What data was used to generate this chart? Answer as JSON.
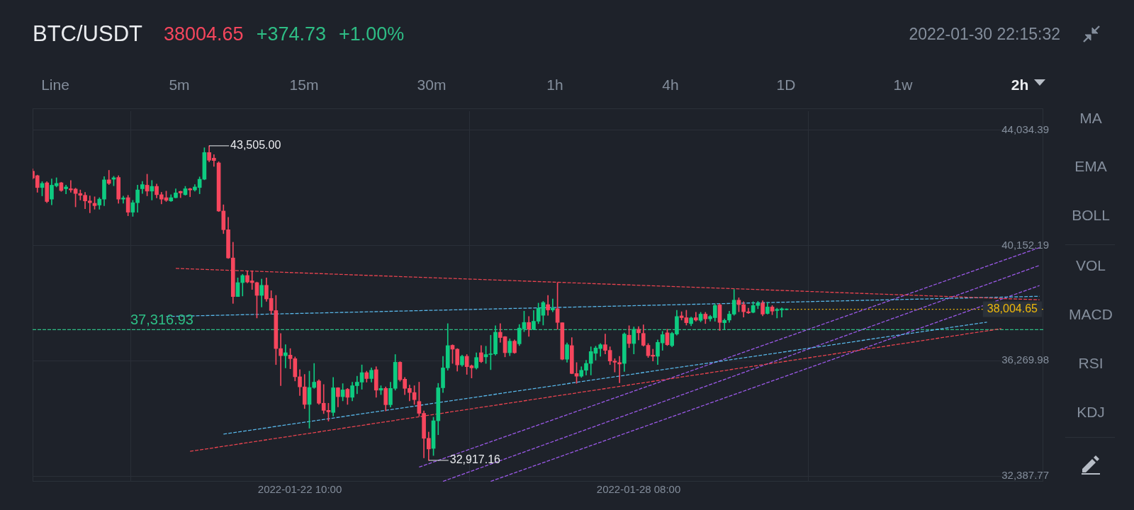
{
  "chart_data": {
    "type": "candlestick",
    "title": "BTC/USDT",
    "annotations": [
      "38004.65",
      "+374.73",
      "+1.00%",
      "2022-01-30 22:15:32",
      "Line",
      "5m",
      "15m",
      "30m",
      "1h",
      "4h",
      "1D",
      "1w",
      "2h",
      "MA",
      "EMA",
      "BOLL",
      "VOL",
      "MACD",
      "RSI",
      "KDJ",
      {
        "text": "43,505.00",
        "x": "2022-01-20T20:00",
        "y": 43505
      },
      {
        "text": "32,917.16",
        "x": "2022-01-24T16:00",
        "y": 32917.16
      }
    ],
    "x": [
      "2022-01-17T18:00",
      "2022-01-17T20:00",
      "2022-01-17T22:00",
      "2022-01-18T00:00",
      "2022-01-18T02:00",
      "2022-01-18T04:00",
      "2022-01-18T06:00",
      "2022-01-18T08:00",
      "2022-01-18T10:00",
      "2022-01-18T12:00",
      "2022-01-18T14:00",
      "2022-01-18T16:00",
      "2022-01-18T18:00",
      "2022-01-18T20:00",
      "2022-01-18T22:00",
      "2022-01-19T00:00",
      "2022-01-19T02:00",
      "2022-01-19T04:00",
      "2022-01-19T06:00",
      "2022-01-19T08:00",
      "2022-01-19T10:00",
      "2022-01-19T12:00",
      "2022-01-19T14:00",
      "2022-01-19T16:00",
      "2022-01-19T18:00",
      "2022-01-19T20:00",
      "2022-01-19T22:00",
      "2022-01-20T00:00",
      "2022-01-20T02:00",
      "2022-01-20T04:00",
      "2022-01-20T06:00",
      "2022-01-20T08:00",
      "2022-01-20T10:00",
      "2022-01-20T12:00",
      "2022-01-20T14:00",
      "2022-01-20T16:00",
      "2022-01-20T18:00",
      "2022-01-20T20:00",
      "2022-01-20T22:00",
      "2022-01-21T00:00",
      "2022-01-21T02:00",
      "2022-01-21T04:00",
      "2022-01-21T06:00",
      "2022-01-21T08:00",
      "2022-01-21T10:00",
      "2022-01-21T12:00",
      "2022-01-21T14:00",
      "2022-01-21T16:00",
      "2022-01-21T18:00",
      "2022-01-21T20:00",
      "2022-01-21T22:00",
      "2022-01-22T00:00",
      "2022-01-22T02:00",
      "2022-01-22T04:00",
      "2022-01-22T06:00",
      "2022-01-22T08:00",
      "2022-01-22T10:00",
      "2022-01-22T12:00",
      "2022-01-22T14:00",
      "2022-01-22T16:00",
      "2022-01-22T18:00",
      "2022-01-22T20:00",
      "2022-01-22T22:00",
      "2022-01-23T00:00",
      "2022-01-23T02:00",
      "2022-01-23T04:00",
      "2022-01-23T06:00",
      "2022-01-23T08:00",
      "2022-01-23T10:00",
      "2022-01-23T12:00",
      "2022-01-23T14:00",
      "2022-01-23T16:00",
      "2022-01-23T18:00",
      "2022-01-23T20:00",
      "2022-01-23T22:00",
      "2022-01-24T00:00",
      "2022-01-24T02:00",
      "2022-01-24T04:00",
      "2022-01-24T06:00",
      "2022-01-24T08:00",
      "2022-01-24T10:00",
      "2022-01-24T12:00",
      "2022-01-24T14:00",
      "2022-01-24T16:00",
      "2022-01-24T18:00",
      "2022-01-24T20:00",
      "2022-01-24T22:00",
      "2022-01-25T00:00",
      "2022-01-25T02:00",
      "2022-01-25T04:00",
      "2022-01-25T06:00",
      "2022-01-25T08:00",
      "2022-01-25T10:00",
      "2022-01-25T12:00",
      "2022-01-25T14:00",
      "2022-01-25T16:00",
      "2022-01-25T18:00",
      "2022-01-25T20:00",
      "2022-01-25T22:00",
      "2022-01-26T00:00",
      "2022-01-26T02:00",
      "2022-01-26T04:00",
      "2022-01-26T06:00",
      "2022-01-26T08:00",
      "2022-01-26T10:00",
      "2022-01-26T12:00",
      "2022-01-26T14:00",
      "2022-01-26T16:00",
      "2022-01-26T18:00",
      "2022-01-26T20:00",
      "2022-01-26T22:00",
      "2022-01-27T00:00",
      "2022-01-27T02:00",
      "2022-01-27T04:00",
      "2022-01-27T06:00",
      "2022-01-27T08:00",
      "2022-01-27T10:00",
      "2022-01-27T12:00",
      "2022-01-27T14:00",
      "2022-01-27T16:00",
      "2022-01-27T18:00",
      "2022-01-27T20:00",
      "2022-01-27T22:00",
      "2022-01-28T00:00",
      "2022-01-28T02:00",
      "2022-01-28T04:00",
      "2022-01-28T06:00",
      "2022-01-28T08:00",
      "2022-01-28T10:00",
      "2022-01-28T12:00",
      "2022-01-28T14:00",
      "2022-01-28T16:00",
      "2022-01-28T18:00",
      "2022-01-28T20:00",
      "2022-01-28T22:00",
      "2022-01-29T00:00",
      "2022-01-29T02:00",
      "2022-01-29T04:00",
      "2022-01-29T06:00",
      "2022-01-29T08:00",
      "2022-01-29T10:00",
      "2022-01-29T12:00",
      "2022-01-29T14:00",
      "2022-01-29T16:00",
      "2022-01-29T18:00",
      "2022-01-29T20:00",
      "2022-01-29T22:00",
      "2022-01-30T00:00",
      "2022-01-30T02:00",
      "2022-01-30T04:00",
      "2022-01-30T06:00",
      "2022-01-30T08:00",
      "2022-01-30T10:00",
      "2022-01-30T12:00",
      "2022-01-30T14:00",
      "2022-01-30T16:00",
      "2022-01-30T18:00",
      "2022-01-30T20:00",
      "2022-01-30T22:00"
    ],
    "ohlc": [
      [
        42650,
        42730,
        42380,
        42420
      ],
      [
        42500,
        42520,
        41940,
        42100
      ],
      [
        42100,
        42300,
        41820,
        42240
      ],
      [
        42260,
        42300,
        41590,
        41630
      ],
      [
        41710,
        42390,
        41520,
        42180
      ],
      [
        42160,
        42430,
        42120,
        42240
      ],
      [
        42260,
        42280,
        41970,
        42000
      ],
      [
        42060,
        42180,
        41890,
        42120
      ],
      [
        42060,
        42340,
        41940,
        42020
      ],
      [
        42050,
        42080,
        41450,
        41900
      ],
      [
        41900,
        42020,
        41680,
        41840
      ],
      [
        41840,
        41940,
        41390,
        41650
      ],
      [
        41650,
        41820,
        41250,
        41590
      ],
      [
        41570,
        41790,
        41370,
        41490
      ],
      [
        41510,
        41760,
        41370,
        41710
      ],
      [
        41710,
        42470,
        41490,
        42360
      ],
      [
        42360,
        42680,
        42200,
        42240
      ],
      [
        42380,
        42480,
        42160,
        42430
      ],
      [
        42440,
        42500,
        41570,
        41710
      ],
      [
        41710,
        41810,
        41570,
        41750
      ],
      [
        41760,
        41840,
        41150,
        41270
      ],
      [
        41270,
        41670,
        41130,
        41590
      ],
      [
        41590,
        42180,
        41270,
        42020
      ],
      [
        42060,
        42310,
        41900,
        42200
      ],
      [
        42180,
        42550,
        41820,
        41980
      ],
      [
        41980,
        42340,
        41680,
        42140
      ],
      [
        42140,
        42220,
        41750,
        41860
      ],
      [
        41860,
        41940,
        41550,
        41710
      ],
      [
        41760,
        41980,
        41630,
        41670
      ],
      [
        41650,
        41860,
        41630,
        41760
      ],
      [
        41760,
        42060,
        41750,
        41920
      ],
      [
        41970,
        41980,
        41760,
        41920
      ],
      [
        41860,
        42140,
        41840,
        42060
      ],
      [
        42060,
        42080,
        41790,
        42020
      ],
      [
        42020,
        42200,
        41980,
        42120
      ],
      [
        42100,
        42460,
        41890,
        42380
      ],
      [
        42380,
        43440,
        42360,
        43280
      ],
      [
        43280,
        43505,
        42970,
        43020
      ],
      [
        43090,
        43210,
        42810,
        43010
      ],
      [
        42930,
        42970,
        41290,
        41310
      ],
      [
        41310,
        41520,
        40550,
        40680
      ],
      [
        40680,
        41100,
        39710,
        39730
      ],
      [
        39730,
        40260,
        38200,
        38430
      ],
      [
        38430,
        39060,
        38430,
        38900
      ],
      [
        38900,
        39180,
        38450,
        39140
      ],
      [
        39140,
        39300,
        38890,
        38920
      ],
      [
        38960,
        39300,
        38670,
        38900
      ],
      [
        38900,
        38920,
        37710,
        38470
      ],
      [
        38470,
        39020,
        38080,
        38810
      ],
      [
        38810,
        39060,
        38270,
        38350
      ],
      [
        38370,
        38630,
        37840,
        37960
      ],
      [
        37960,
        38470,
        36140,
        36680
      ],
      [
        36680,
        37190,
        35430,
        36440
      ],
      [
        36440,
        36810,
        36030,
        36540
      ],
      [
        36460,
        36680,
        36000,
        36340
      ],
      [
        36340,
        36400,
        35590,
        35730
      ],
      [
        35730,
        35970,
        35100,
        35390
      ],
      [
        35390,
        35810,
        34660,
        34800
      ],
      [
        34800,
        35920,
        34000,
        35370
      ],
      [
        35370,
        36180,
        35340,
        35550
      ],
      [
        35590,
        35630,
        34800,
        34840
      ],
      [
        34840,
        35470,
        34490,
        34600
      ],
      [
        34600,
        34840,
        34240,
        34550
      ],
      [
        34530,
        35710,
        34410,
        35360
      ],
      [
        35360,
        35370,
        34720,
        35060
      ],
      [
        35060,
        35500,
        34920,
        35290
      ],
      [
        35310,
        35340,
        34800,
        35040
      ],
      [
        35040,
        35550,
        34920,
        35430
      ],
      [
        35430,
        35750,
        35160,
        35550
      ],
      [
        35550,
        36130,
        35310,
        35870
      ],
      [
        35870,
        35920,
        35550,
        35670
      ],
      [
        35670,
        36030,
        35550,
        35950
      ],
      [
        35970,
        36070,
        35040,
        35280
      ],
      [
        35280,
        35430,
        35130,
        35340
      ],
      [
        35340,
        35390,
        34580,
        34790
      ],
      [
        34790,
        35550,
        34710,
        35340
      ],
      [
        35340,
        36480,
        35280,
        36220
      ],
      [
        36220,
        36240,
        35580,
        35630
      ],
      [
        35650,
        35710,
        35130,
        35340
      ],
      [
        35340,
        35450,
        34920,
        35200
      ],
      [
        35200,
        35430,
        34800,
        34960
      ],
      [
        34900,
        35550,
        34410,
        34500
      ],
      [
        34500,
        34580,
        33000,
        33660
      ],
      [
        33660,
        33870,
        32917.16,
        33300
      ],
      [
        33320,
        34370,
        33080,
        34250
      ],
      [
        34250,
        35510,
        33780,
        35360
      ],
      [
        35360,
        36420,
        35200,
        36030
      ],
      [
        36030,
        37520,
        35950,
        36780
      ],
      [
        36790,
        36810,
        36180,
        36660
      ],
      [
        36660,
        36680,
        35920,
        36130
      ],
      [
        36130,
        36460,
        36080,
        36420
      ],
      [
        36420,
        36480,
        35810,
        36070
      ],
      [
        36100,
        36130,
        35690,
        36030
      ],
      [
        36030,
        36540,
        35990,
        36380
      ],
      [
        36540,
        36780,
        36210,
        36240
      ],
      [
        36400,
        36760,
        36180,
        36480
      ],
      [
        36480,
        37130,
        35970,
        36500
      ],
      [
        36500,
        37450,
        36460,
        37230
      ],
      [
        37230,
        37520,
        36890,
        37050
      ],
      [
        37080,
        37090,
        36400,
        36540
      ],
      [
        36540,
        37010,
        36440,
        36930
      ],
      [
        36930,
        36970,
        36520,
        36540
      ],
      [
        36840,
        37490,
        36780,
        37370
      ],
      [
        37340,
        37940,
        37250,
        37560
      ],
      [
        37560,
        37760,
        37090,
        37330
      ],
      [
        37330,
        37960,
        37310,
        37600
      ],
      [
        37600,
        38210,
        37520,
        38040
      ],
      [
        37800,
        38270,
        37470,
        38230
      ],
      [
        38160,
        38470,
        37800,
        37980
      ],
      [
        37980,
        38350,
        37920,
        38040
      ],
      [
        38020,
        38900,
        37330,
        37560
      ],
      [
        37550,
        37550,
        36300,
        36320
      ],
      [
        36320,
        36870,
        36220,
        36810
      ],
      [
        36780,
        37050,
        35830,
        35840
      ],
      [
        35840,
        36210,
        35510,
        35750
      ],
      [
        35750,
        36070,
        35710,
        35950
      ],
      [
        35950,
        36290,
        35790,
        36180
      ],
      [
        36180,
        36740,
        35790,
        36580
      ],
      [
        36520,
        36760,
        36290,
        36700
      ],
      [
        36680,
        36850,
        36420,
        36810
      ],
      [
        36810,
        37170,
        36500,
        36620
      ],
      [
        36620,
        36740,
        36140,
        36260
      ],
      [
        36260,
        36340,
        35890,
        36220
      ],
      [
        36210,
        36420,
        35530,
        36160
      ],
      [
        36180,
        37210,
        35910,
        37170
      ],
      [
        37130,
        37450,
        36710,
        36850
      ],
      [
        36850,
        37410,
        36500,
        37330
      ],
      [
        37330,
        37420,
        36970,
        37210
      ],
      [
        37190,
        37480,
        36760,
        36790
      ],
      [
        36790,
        36850,
        36380,
        36440
      ],
      [
        36460,
        36660,
        36260,
        36420
      ],
      [
        36420,
        36970,
        36140,
        36890
      ],
      [
        36870,
        37260,
        36620,
        37150
      ],
      [
        37210,
        37330,
        36780,
        36810
      ],
      [
        36780,
        37230,
        36740,
        37190
      ],
      [
        37170,
        37970,
        37130,
        37760
      ],
      [
        37780,
        37920,
        37640,
        37720
      ],
      [
        37720,
        37970,
        37470,
        37550
      ],
      [
        37520,
        37740,
        37450,
        37710
      ],
      [
        37720,
        37900,
        37600,
        37640
      ],
      [
        37630,
        37900,
        37580,
        37840
      ],
      [
        37840,
        37900,
        37520,
        37680
      ],
      [
        37680,
        37800,
        37600,
        37760
      ],
      [
        37720,
        38180,
        37600,
        38130
      ],
      [
        38150,
        38190,
        37290,
        37560
      ],
      [
        37550,
        37680,
        37310,
        37630
      ],
      [
        37640,
        37940,
        37560,
        37840
      ],
      [
        37840,
        38670,
        37800,
        38310
      ],
      [
        38310,
        38390,
        37920,
        38160
      ],
      [
        38160,
        38260,
        37740,
        37920
      ],
      [
        37920,
        38040,
        37860,
        37880
      ],
      [
        37900,
        38260,
        37880,
        38130
      ],
      [
        38130,
        38270,
        38020,
        38210
      ],
      [
        38210,
        38290,
        37780,
        37840
      ],
      [
        37860,
        38230,
        37840,
        38080
      ],
      [
        38080,
        38130,
        37820,
        37940
      ],
      [
        37960,
        38040,
        37710,
        38000
      ],
      [
        37980,
        38050,
        37740,
        38020
      ],
      [
        37990,
        38020,
        37980,
        38004.65
      ]
    ],
    "colors": [
      "#f6465d",
      "#f6465d",
      "#0ecb81",
      "#f6465d",
      "#0ecb81",
      "#0ecb81",
      "#f6465d",
      "#0ecb81",
      "#f6465d",
      "#f6465d",
      "#f6465d",
      "#f6465d",
      "#f6465d",
      "#f6465d",
      "#0ecb81",
      "#0ecb81",
      "#f6465d",
      "#0ecb81",
      "#f6465d",
      "#0ecb81",
      "#f6465d",
      "#0ecb81",
      "#0ecb81",
      "#0ecb81",
      "#f6465d",
      "#0ecb81",
      "#f6465d",
      "#f6465d",
      "#f6465d",
      "#0ecb81",
      "#0ecb81",
      "#f6465d",
      "#0ecb81",
      "#f6465d",
      "#0ecb81",
      "#0ecb81",
      "#0ecb81",
      "#f6465d",
      "#f6465d",
      "#f6465d",
      "#f6465d",
      "#f6465d",
      "#f6465d",
      "#0ecb81",
      "#0ecb81",
      "#f6465d",
      "#f6465d",
      "#f6465d",
      "#0ecb81",
      "#f6465d",
      "#f6465d",
      "#f6465d",
      "#f6465d",
      "#0ecb81",
      "#f6465d",
      "#f6465d",
      "#f6465d",
      "#f6465d",
      "#0ecb81",
      "#0ecb81",
      "#f6465d",
      "#f6465d",
      "#f6465d",
      "#0ecb81",
      "#f6465d",
      "#0ecb81",
      "#f6465d",
      "#0ecb81",
      "#0ecb81",
      "#0ecb81",
      "#f6465d",
      "#0ecb81",
      "#f6465d",
      "#0ecb81",
      "#f6465d",
      "#0ecb81",
      "#0ecb81",
      "#f6465d",
      "#f6465d",
      "#f6465d",
      "#f6465d",
      "#f6465d",
      "#f6465d",
      "#f6465d",
      "#0ecb81",
      "#0ecb81",
      "#0ecb81",
      "#0ecb81",
      "#f6465d",
      "#f6465d",
      "#0ecb81",
      "#f6465d",
      "#f6465d",
      "#0ecb81",
      "#f6465d",
      "#0ecb81",
      "#0ecb81",
      "#0ecb81",
      "#f6465d",
      "#f6465d",
      "#0ecb81",
      "#f6465d",
      "#0ecb81",
      "#0ecb81",
      "#f6465d",
      "#0ecb81",
      "#0ecb81",
      "#0ecb81",
      "#f6465d",
      "#0ecb81",
      "#f6465d",
      "#f6465d",
      "#0ecb81",
      "#f6465d",
      "#f6465d",
      "#0ecb81",
      "#0ecb81",
      "#0ecb81",
      "#0ecb81",
      "#0ecb81",
      "#f6465d",
      "#f6465d",
      "#f6465d",
      "#f6465d",
      "#0ecb81",
      "#f6465d",
      "#0ecb81",
      "#f6465d",
      "#f6465d",
      "#f6465d",
      "#f6465d",
      "#0ecb81",
      "#0ecb81",
      "#f6465d",
      "#0ecb81",
      "#0ecb81",
      "#f6465d",
      "#f6465d",
      "#0ecb81",
      "#f6465d",
      "#0ecb81",
      "#f6465d",
      "#0ecb81",
      "#0ecb81",
      "#f6465d",
      "#0ecb81",
      "#0ecb81",
      "#0ecb81",
      "#f6465d",
      "#f6465d",
      "#f6465d",
      "#0ecb81",
      "#0ecb81",
      "#f6465d",
      "#0ecb81",
      "#f6465d",
      "#0ecb81",
      "#0ecb81",
      "#0ecb81"
    ],
    "series": [
      {
        "type": "line",
        "color": "#e8434f",
        "line_style": "dashed",
        "x": [
          "2022-01-20T06:00",
          "2022-02-04T08:00"
        ],
        "values": [
          39380,
          38320
        ]
      },
      {
        "type": "line",
        "color": "#58b6e8",
        "line_style": "dashed",
        "x": [
          "2022-01-20T02:00",
          "2022-02-04T08:00"
        ],
        "values": [
          37760,
          38440
        ]
      },
      {
        "type": "line",
        "color": "#58b6e8",
        "line_style": "dashed",
        "x": [
          "2022-01-21T02:00",
          "2022-02-03T10:00"
        ],
        "values": [
          33800,
          37570
        ]
      },
      {
        "type": "line",
        "color": "#e8434f",
        "line_style": "dashed",
        "x": [
          "2022-01-20T12:00",
          "2022-02-03T16:00"
        ],
        "values": [
          33220,
          37350
        ]
      },
      {
        "type": "line",
        "color": "#9b59e8",
        "line_style": "dashed",
        "x": [
          "2022-01-24T12:00",
          "2022-02-04T08:00"
        ],
        "values": [
          32690,
          40080
        ]
      },
      {
        "type": "line",
        "color": "#9b59e8",
        "line_style": "dashed",
        "x": [
          "2022-01-24T22:00",
          "2022-02-04T08:00"
        ],
        "values": [
          32210,
          39480
        ]
      },
      {
        "type": "line",
        "color": "#9b59e8",
        "line_style": "dashed",
        "x": [
          "2022-01-25T18:00",
          "2022-02-04T08:00"
        ],
        "values": [
          32210,
          38800
        ]
      }
    ],
    "ref_lines": [
      {
        "axis": "y",
        "value": 37316.93,
        "label": "37,316.93",
        "color": "#2ebd85",
        "line_style": "dashed"
      },
      {
        "axis": "y",
        "value": 38004.65,
        "label": "38,004.65",
        "color": "#f0b90b",
        "line_style": "dotted"
      }
    ],
    "xlim": [
      "2022-01-17T18:00",
      "2022-02-04T09:36"
    ],
    "xticks": [
      {
        "value": "2022-01-22T10:00",
        "label": "2022-01-22 10:00"
      },
      {
        "value": "2022-01-28T08:00",
        "label": "2022-01-28 08:00"
      }
    ],
    "ylim": [
      32200,
      44670
    ],
    "yticks": [
      {
        "value": 32387.77,
        "label": "32,387.77"
      },
      {
        "value": 36269.98,
        "label": "36,269.98"
      },
      {
        "value": 40152.19,
        "label": "40,152.19"
      },
      {
        "value": 44034.39,
        "label": "44,034.39"
      }
    ],
    "grid": true
  }
}
